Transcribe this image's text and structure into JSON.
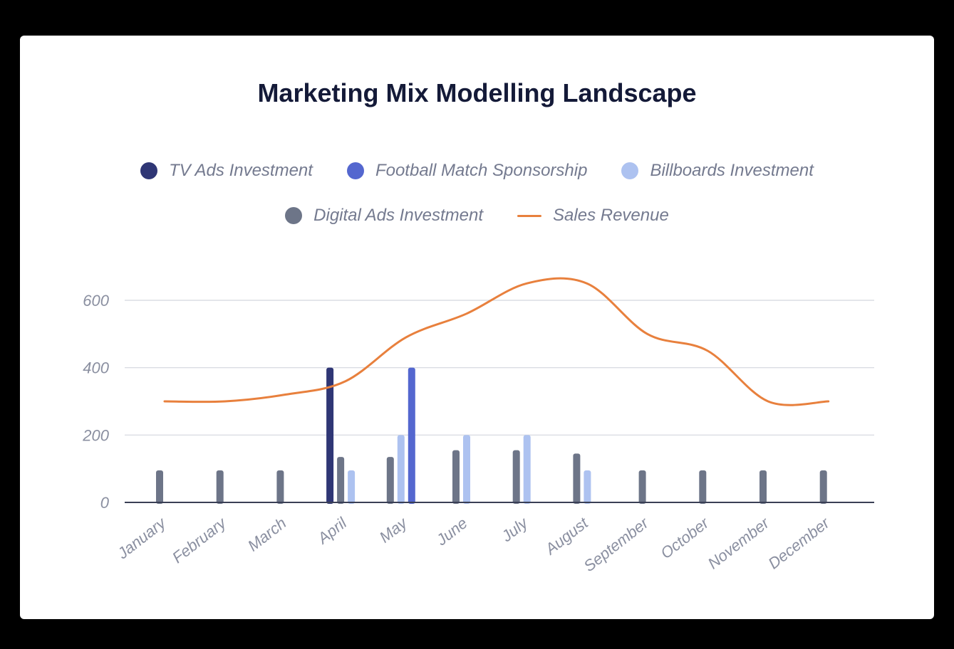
{
  "chart_data": {
    "type": "bar",
    "title": "Marketing Mix Modelling Landscape",
    "categories": [
      "January",
      "February",
      "March",
      "April",
      "May",
      "June",
      "July",
      "August",
      "September",
      "October",
      "November",
      "December"
    ],
    "ylim": [
      0,
      700
    ],
    "yticks": [
      0,
      200,
      400,
      600
    ],
    "xlabel": "",
    "ylabel": "",
    "grid": true,
    "legend_position": "top-center",
    "series": [
      {
        "name": "TV Ads Investment",
        "kind": "bar",
        "color": "#2f3675",
        "values": [
          0,
          0,
          0,
          400,
          0,
          0,
          0,
          0,
          0,
          0,
          0,
          0
        ]
      },
      {
        "name": "Football Match Sponsorship",
        "kind": "bar",
        "color": "#5467cf",
        "values": [
          0,
          0,
          0,
          0,
          400,
          0,
          0,
          0,
          0,
          0,
          0,
          0
        ]
      },
      {
        "name": "Billboards Investment",
        "kind": "bar",
        "color": "#adc2f0",
        "values": [
          0,
          0,
          0,
          95,
          200,
          200,
          200,
          95,
          0,
          0,
          0,
          0
        ]
      },
      {
        "name": "Digital Ads Investment",
        "kind": "bar",
        "color": "#6d7588",
        "values": [
          95,
          95,
          95,
          135,
          135,
          155,
          155,
          145,
          95,
          95,
          95,
          95
        ]
      },
      {
        "name": "Sales Revenue",
        "kind": "line",
        "color": "#e8803d",
        "values": [
          300,
          300,
          320,
          360,
          490,
          560,
          650,
          650,
          500,
          450,
          300,
          300
        ]
      }
    ]
  }
}
